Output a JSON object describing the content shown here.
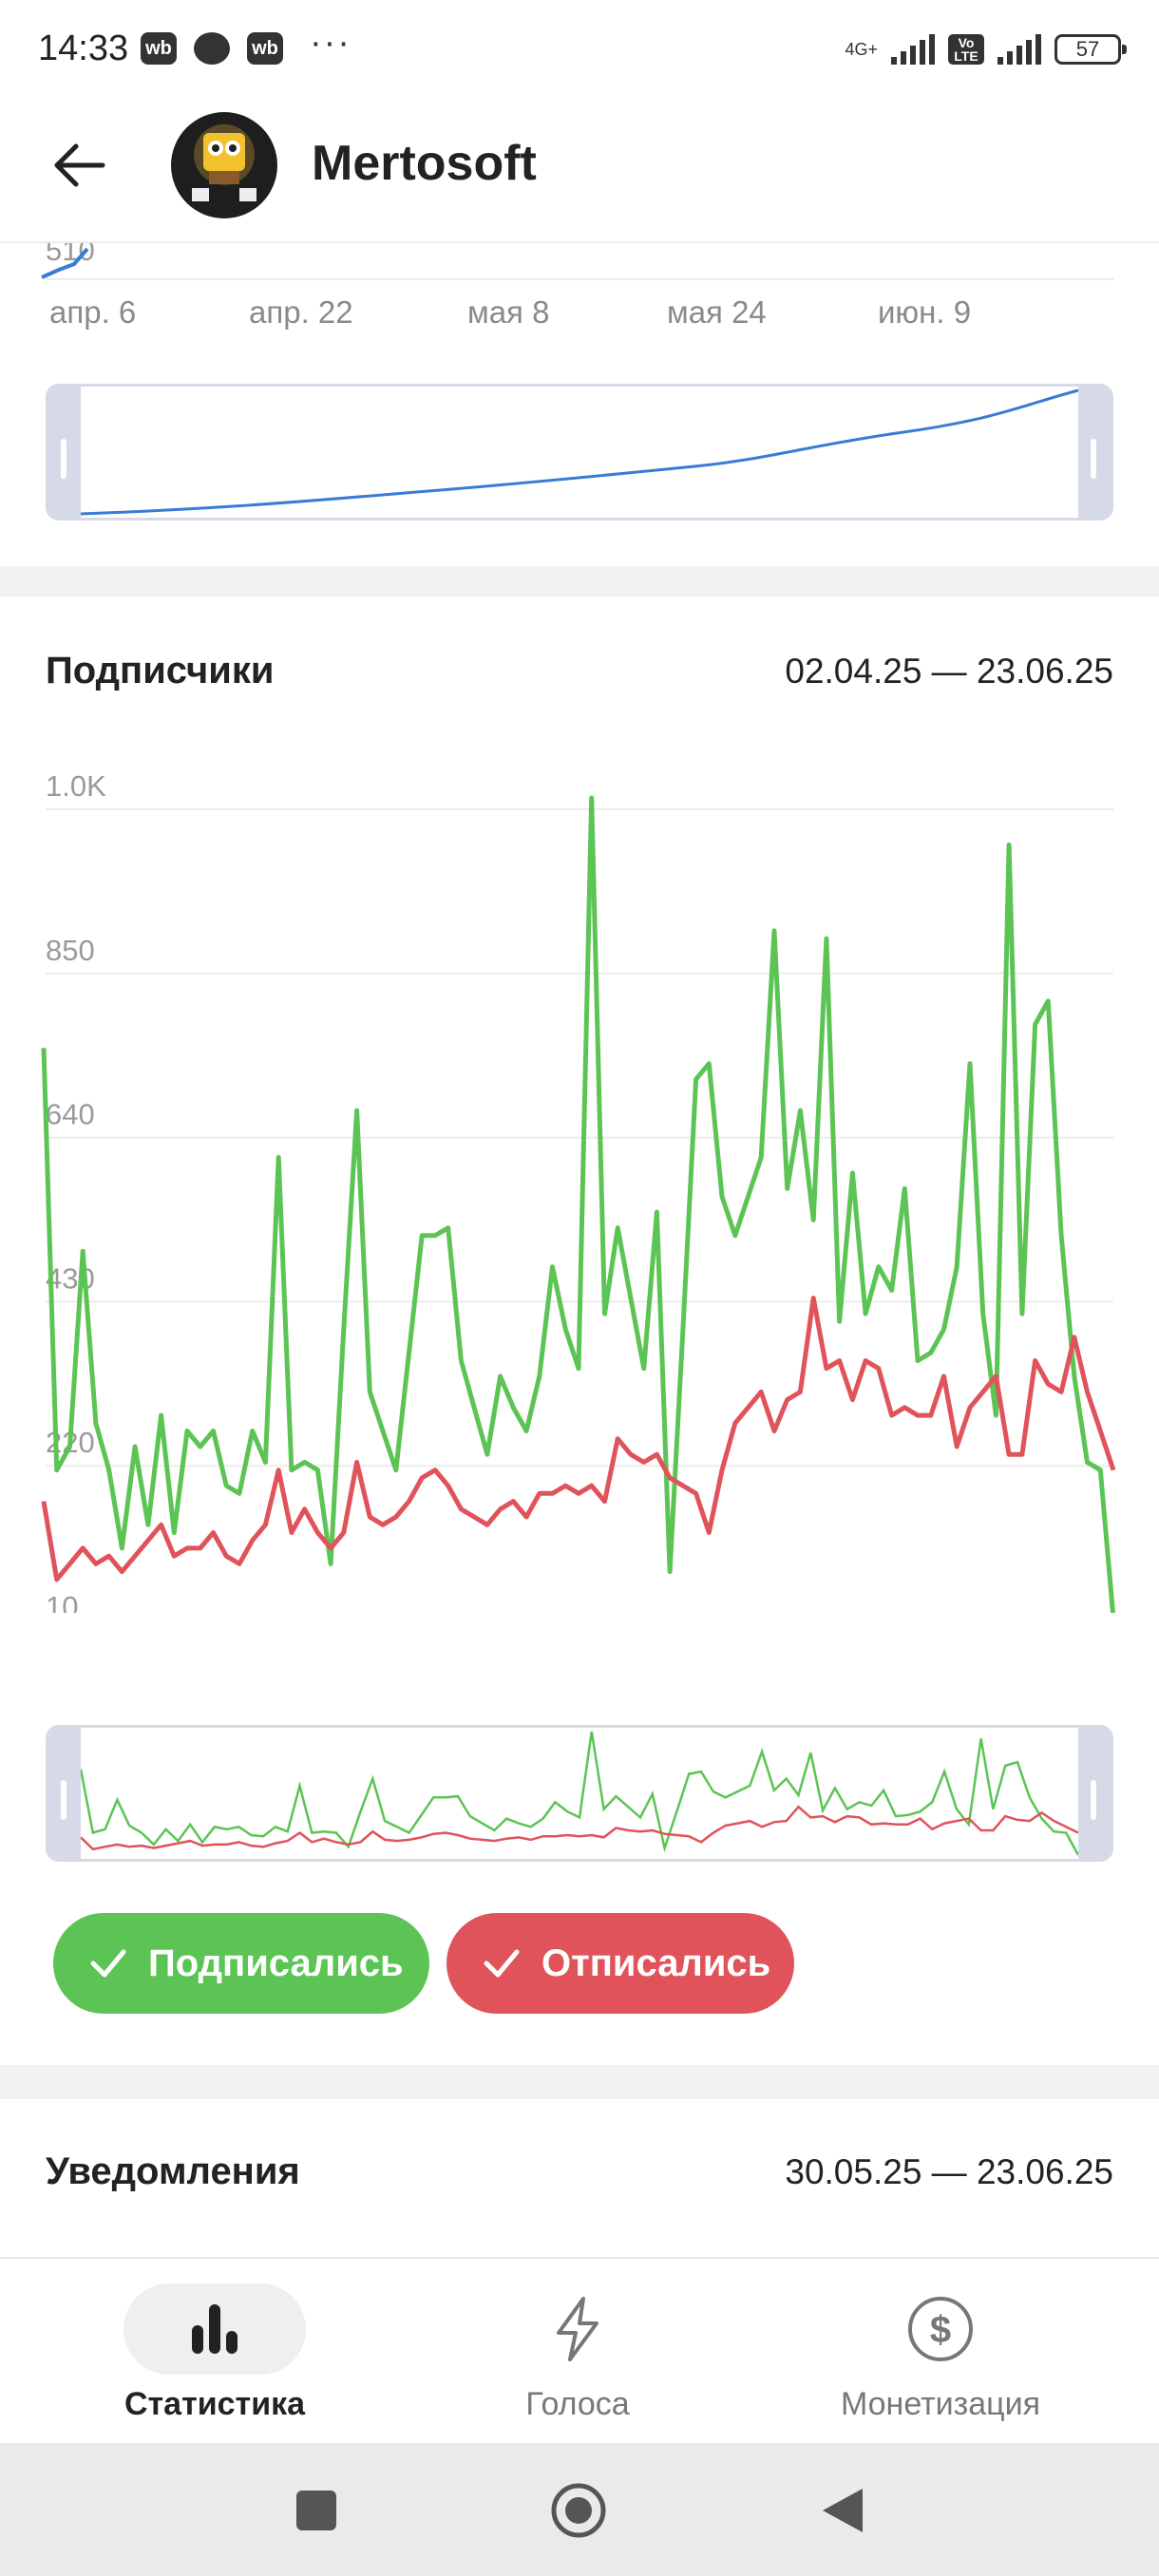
{
  "status_bar": {
    "time": "14:33",
    "badge_1": "wb",
    "badge_2": "wb",
    "more": "···",
    "network": "4G+",
    "volte": "Vo LTE",
    "battery": "57"
  },
  "header": {
    "title": "Mertosoft",
    "back_icon": "arrow-left-icon",
    "avatar": "channel-avatar"
  },
  "top_chart": {
    "partial_y_tick": "510",
    "x_ticks": [
      "апр. 6",
      "апр. 22",
      "мая 8",
      "мая 24",
      "июн. 9"
    ],
    "line_color": "#3a7bd5"
  },
  "subscribers": {
    "title": "Подписчики",
    "date_range": "02.04.25 — 23.06.25",
    "subscribed_label": "Подписались",
    "unsubscribed_label": "Отписались",
    "subscribed_color": "#5cc454",
    "unsubscribed_color": "#e0535a"
  },
  "chart_data": {
    "type": "line",
    "title": "Подписчики",
    "x_ticks": [
      "апр. 6",
      "апр. 22",
      "мая 8",
      "мая 24",
      "июн. 9"
    ],
    "y_ticks": [
      "10",
      "220",
      "430",
      "640",
      "850",
      "1.0K"
    ],
    "ylim": [
      10,
      1060
    ],
    "x_range": [
      "02.04.25",
      "23.06.25"
    ],
    "grid": true,
    "series": [
      {
        "name": "Подписались",
        "color": "#5cc454",
        "values": [
          740,
          200,
          230,
          480,
          260,
          200,
          100,
          230,
          130,
          270,
          120,
          250,
          230,
          250,
          180,
          170,
          250,
          210,
          600,
          200,
          210,
          200,
          80,
          380,
          660,
          300,
          250,
          200,
          350,
          500,
          500,
          510,
          340,
          280,
          220,
          320,
          280,
          250,
          320,
          460,
          380,
          330,
          1060,
          400,
          510,
          420,
          330,
          530,
          70,
          380,
          700,
          720,
          550,
          500,
          550,
          600,
          890,
          560,
          660,
          520,
          880,
          390,
          580,
          400,
          460,
          430,
          560,
          340,
          350,
          380,
          460,
          720,
          400,
          270,
          1000,
          400,
          770,
          800,
          500,
          320,
          210,
          200,
          10
        ]
      },
      {
        "name": "Отписались",
        "color": "#e0535a",
        "values": [
          160,
          60,
          80,
          100,
          80,
          90,
          70,
          90,
          110,
          130,
          90,
          100,
          100,
          120,
          90,
          80,
          110,
          130,
          200,
          120,
          150,
          120,
          100,
          120,
          210,
          140,
          130,
          140,
          160,
          190,
          200,
          180,
          150,
          140,
          130,
          150,
          160,
          140,
          170,
          170,
          180,
          170,
          180,
          160,
          240,
          220,
          210,
          220,
          190,
          180,
          170,
          120,
          200,
          260,
          280,
          300,
          250,
          290,
          300,
          420,
          330,
          340,
          290,
          340,
          330,
          270,
          280,
          270,
          270,
          320,
          230,
          280,
          300,
          320,
          220,
          220,
          340,
          310,
          300,
          370,
          300,
          250,
          200
        ]
      }
    ]
  },
  "notifications": {
    "title": "Уведомления",
    "date_range": "30.05.25 — 23.06.25"
  },
  "bottom_nav": {
    "tabs": [
      {
        "label": "Статистика",
        "icon": "bar-chart-icon",
        "active": true
      },
      {
        "label": "Голоса",
        "icon": "lightning-icon",
        "active": false
      },
      {
        "label": "Монетизация",
        "icon": "dollar-circle-icon",
        "active": false
      }
    ],
    "active_color": "#222222",
    "inactive_color": "#8a8a8a"
  },
  "android_nav": {
    "recents_icon": "square-icon",
    "home_icon": "circle-icon",
    "back_icon": "triangle-back-icon"
  }
}
